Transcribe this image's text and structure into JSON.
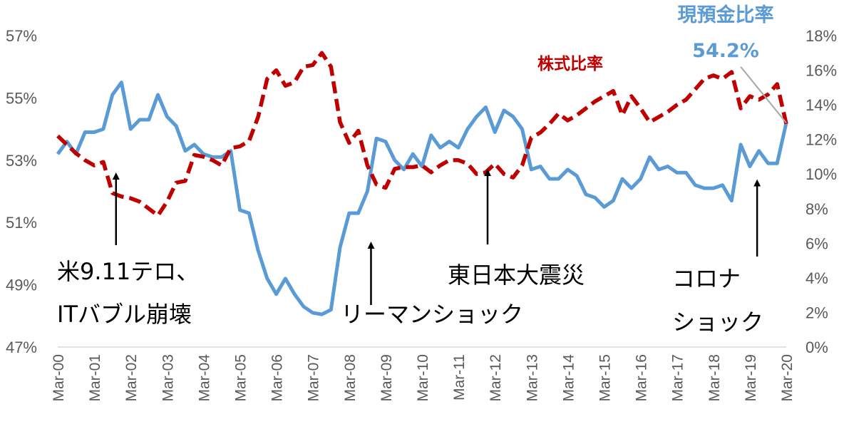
{
  "chart_data": {
    "type": "line",
    "title": "",
    "x_categories": [
      "Mar-00",
      "Mar-01",
      "Mar-02",
      "Mar-03",
      "Mar-04",
      "Mar-05",
      "Mar-06",
      "Mar-07",
      "Mar-08",
      "Mar-09",
      "Mar-10",
      "Mar-11",
      "Mar-12",
      "Mar-13",
      "Mar-14",
      "Mar-15",
      "Mar-16",
      "Mar-17",
      "Mar-18",
      "Mar-19",
      "Mar-20"
    ],
    "y_left": {
      "ticks": [
        "47%",
        "49%",
        "51%",
        "53%",
        "55%",
        "57%"
      ],
      "range": [
        47,
        57
      ]
    },
    "y_right": {
      "ticks": [
        "0%",
        "2%",
        "4%",
        "6%",
        "8%",
        "10%",
        "12%",
        "14%",
        "16%",
        "18%"
      ],
      "range": [
        0,
        18
      ]
    },
    "series": [
      {
        "name": "現預金比率",
        "axis": "left",
        "color": "#5b9bd5",
        "style": "solid",
        "x": [
          0,
          0.25,
          0.5,
          0.75,
          1,
          1.25,
          1.5,
          1.75,
          2,
          2.25,
          2.5,
          2.75,
          3,
          3.25,
          3.5,
          3.75,
          4,
          4.25,
          4.5,
          4.75,
          5,
          5.25,
          5.5,
          5.75,
          6,
          6.25,
          6.5,
          6.75,
          7,
          7.25,
          7.5,
          7.75,
          8,
          8.25,
          8.5,
          8.75,
          9,
          9.25,
          9.5,
          9.75,
          10,
          10.25,
          10.5,
          10.75,
          11,
          11.25,
          11.5,
          11.75,
          12,
          12.25,
          12.5,
          12.75,
          13,
          13.25,
          13.5,
          13.75,
          14,
          14.25,
          14.5,
          14.75,
          15,
          15.25,
          15.5,
          15.75,
          16,
          16.25,
          16.5,
          16.75,
          17,
          17.25,
          17.5,
          17.75,
          18,
          18.25,
          18.5,
          18.75,
          19,
          19.25,
          19.5,
          19.75,
          20
        ],
        "values": [
          53.2,
          53.6,
          53.2,
          53.9,
          53.9,
          54.0,
          55.1,
          55.5,
          54.0,
          54.3,
          54.3,
          55.1,
          54.4,
          54.1,
          53.3,
          53.5,
          53.2,
          53.1,
          53.1,
          53.3,
          51.4,
          51.3,
          50.1,
          49.2,
          48.7,
          49.2,
          48.7,
          48.3,
          48.1,
          48.05,
          48.2,
          50.2,
          51.3,
          51.3,
          52.0,
          53.7,
          53.6,
          53.0,
          52.7,
          53.2,
          52.8,
          53.8,
          53.4,
          53.6,
          53.4,
          54.0,
          54.4,
          54.7,
          53.9,
          54.6,
          54.4,
          54.0,
          52.7,
          52.8,
          52.4,
          52.4,
          52.7,
          52.5,
          51.9,
          51.8,
          51.5,
          51.7,
          52.4,
          52.1,
          52.4,
          53.1,
          52.7,
          52.8,
          52.6,
          52.6,
          52.2,
          52.1,
          52.1,
          52.2,
          51.7,
          53.5,
          52.8,
          53.3,
          52.9,
          52.9,
          54.2
        ]
      },
      {
        "name": "株式比率",
        "axis": "right",
        "color": "#c00000",
        "style": "dashed",
        "x": [
          0,
          0.25,
          0.5,
          0.75,
          1,
          1.25,
          1.5,
          1.75,
          2,
          2.25,
          2.5,
          2.75,
          3,
          3.25,
          3.5,
          3.75,
          4,
          4.25,
          4.5,
          4.75,
          5,
          5.25,
          5.5,
          5.75,
          6,
          6.25,
          6.5,
          6.75,
          7,
          7.25,
          7.5,
          7.75,
          8,
          8.25,
          8.5,
          8.75,
          9,
          9.25,
          9.5,
          9.75,
          10,
          10.25,
          10.5,
          10.75,
          11,
          11.25,
          11.5,
          11.75,
          12,
          12.25,
          12.5,
          12.75,
          13,
          13.25,
          13.5,
          13.75,
          14,
          14.25,
          14.5,
          14.75,
          15,
          15.25,
          15.5,
          15.75,
          16,
          16.25,
          16.5,
          16.75,
          17,
          17.25,
          17.5,
          17.75,
          18,
          18.25,
          18.5,
          18.75,
          19,
          19.25,
          19.5,
          19.75,
          20
        ],
        "values": [
          12.2,
          11.7,
          11.2,
          10.8,
          10.5,
          10.7,
          8.9,
          8.7,
          8.6,
          8.4,
          8.0,
          7.6,
          8.4,
          9.5,
          9.6,
          11.1,
          11.0,
          10.8,
          10.5,
          11.5,
          11.6,
          11.9,
          13.3,
          15.5,
          16.0,
          15.1,
          15.3,
          16.2,
          16.3,
          17.0,
          16.2,
          13.0,
          11.8,
          12.5,
          10.5,
          9.4,
          9.2,
          10.3,
          10.4,
          10.4,
          10.5,
          10.1,
          10.5,
          10.8,
          10.8,
          10.6,
          10.0,
          10.1,
          10.6,
          10.0,
          9.8,
          10.5,
          12.1,
          12.4,
          12.9,
          13.5,
          13.1,
          13.4,
          13.8,
          14.2,
          14.5,
          14.8,
          13.4,
          14.5,
          13.8,
          13.0,
          13.3,
          13.6,
          14.0,
          14.3,
          14.9,
          15.5,
          15.7,
          15.5,
          15.9,
          13.8,
          14.5,
          14.3,
          14.6,
          15.2,
          12.9
        ]
      }
    ],
    "trend_line": {
      "color": "#a6a6a6",
      "from": [
        18.75,
        56.0
      ],
      "to": [
        20,
        54.2
      ],
      "axis": "left"
    },
    "series_labels": {
      "cash": "現預金比率",
      "cash_value": "54.2%",
      "stock": "株式比率"
    },
    "annotations": [
      {
        "lines": [
          "米9.11テロ、",
          "ITバブル崩壊"
        ],
        "x": 1.6,
        "arrow_tip_right_pct": 10.3
      },
      {
        "lines": [
          "リーマンショック"
        ],
        "x": 8.6,
        "arrow_tip_right_pct": 6.3
      },
      {
        "lines": [
          "東日本大震災"
        ],
        "x": 11.8,
        "arrow_tip_right_pct": 10.5
      },
      {
        "lines": [
          "コロナ",
          "ショック"
        ],
        "x": 19.2,
        "arrow_tip_right_pct": 9.9
      }
    ]
  }
}
